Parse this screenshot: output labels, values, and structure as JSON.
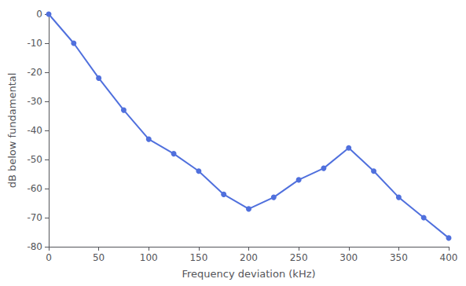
{
  "chart_data": {
    "type": "line",
    "xlabel": "Frequency deviation (kHz)",
    "ylabel": "dB below fundamental",
    "x": [
      0,
      25,
      50,
      75,
      100,
      125,
      150,
      175,
      200,
      225,
      250,
      275,
      300,
      325,
      350,
      375,
      400
    ],
    "values": [
      0,
      -10,
      -22,
      -33,
      -43,
      -48,
      -54,
      -62,
      -67,
      -63,
      -57,
      -53,
      -46,
      -54,
      -63,
      -70,
      -77
    ],
    "xlim": [
      0,
      400
    ],
    "ylim": [
      -80,
      0
    ],
    "xticks": [
      0,
      50,
      100,
      150,
      200,
      250,
      300,
      350,
      400
    ],
    "yticks": [
      0,
      -10,
      -20,
      -30,
      -40,
      -50,
      -60,
      -70,
      -80
    ],
    "marker": "circle",
    "grid": false
  }
}
